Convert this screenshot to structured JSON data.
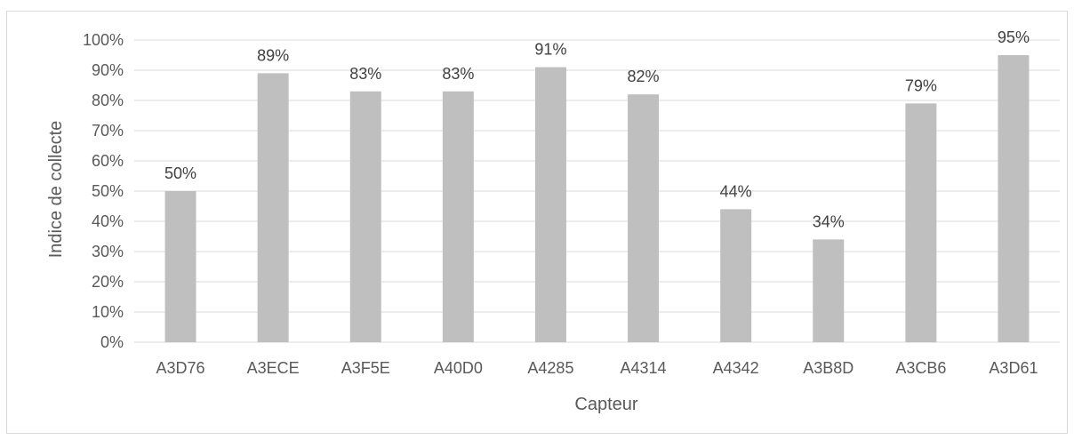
{
  "chart_data": {
    "type": "bar",
    "title": "",
    "xlabel": "Capteur",
    "ylabel": "Indice de collecte",
    "categories": [
      "A3D76",
      "A3ECE",
      "A3F5E",
      "A40D0",
      "A4285",
      "A4314",
      "A4342",
      "A3B8D",
      "A3CB6",
      "A3D61"
    ],
    "values": [
      0.5,
      0.89,
      0.83,
      0.83,
      0.91,
      0.82,
      0.44,
      0.34,
      0.79,
      0.95
    ],
    "data_labels": [
      "50%",
      "89%",
      "83%",
      "83%",
      "91%",
      "82%",
      "44%",
      "34%",
      "79%",
      "95%"
    ],
    "yticks": [
      0,
      0.1,
      0.2,
      0.3,
      0.4,
      0.5,
      0.6,
      0.7,
      0.8,
      0.9,
      1.0
    ],
    "ytick_labels": [
      "0%",
      "10%",
      "20%",
      "30%",
      "40%",
      "50%",
      "60%",
      "70%",
      "80%",
      "90%",
      "100%"
    ],
    "ylim": [
      0,
      1.0
    ],
    "grid": true,
    "legend": "none",
    "colors": {
      "bar": "#bfbfbf",
      "grid": "#d9d9d9",
      "text": "#595959"
    }
  }
}
